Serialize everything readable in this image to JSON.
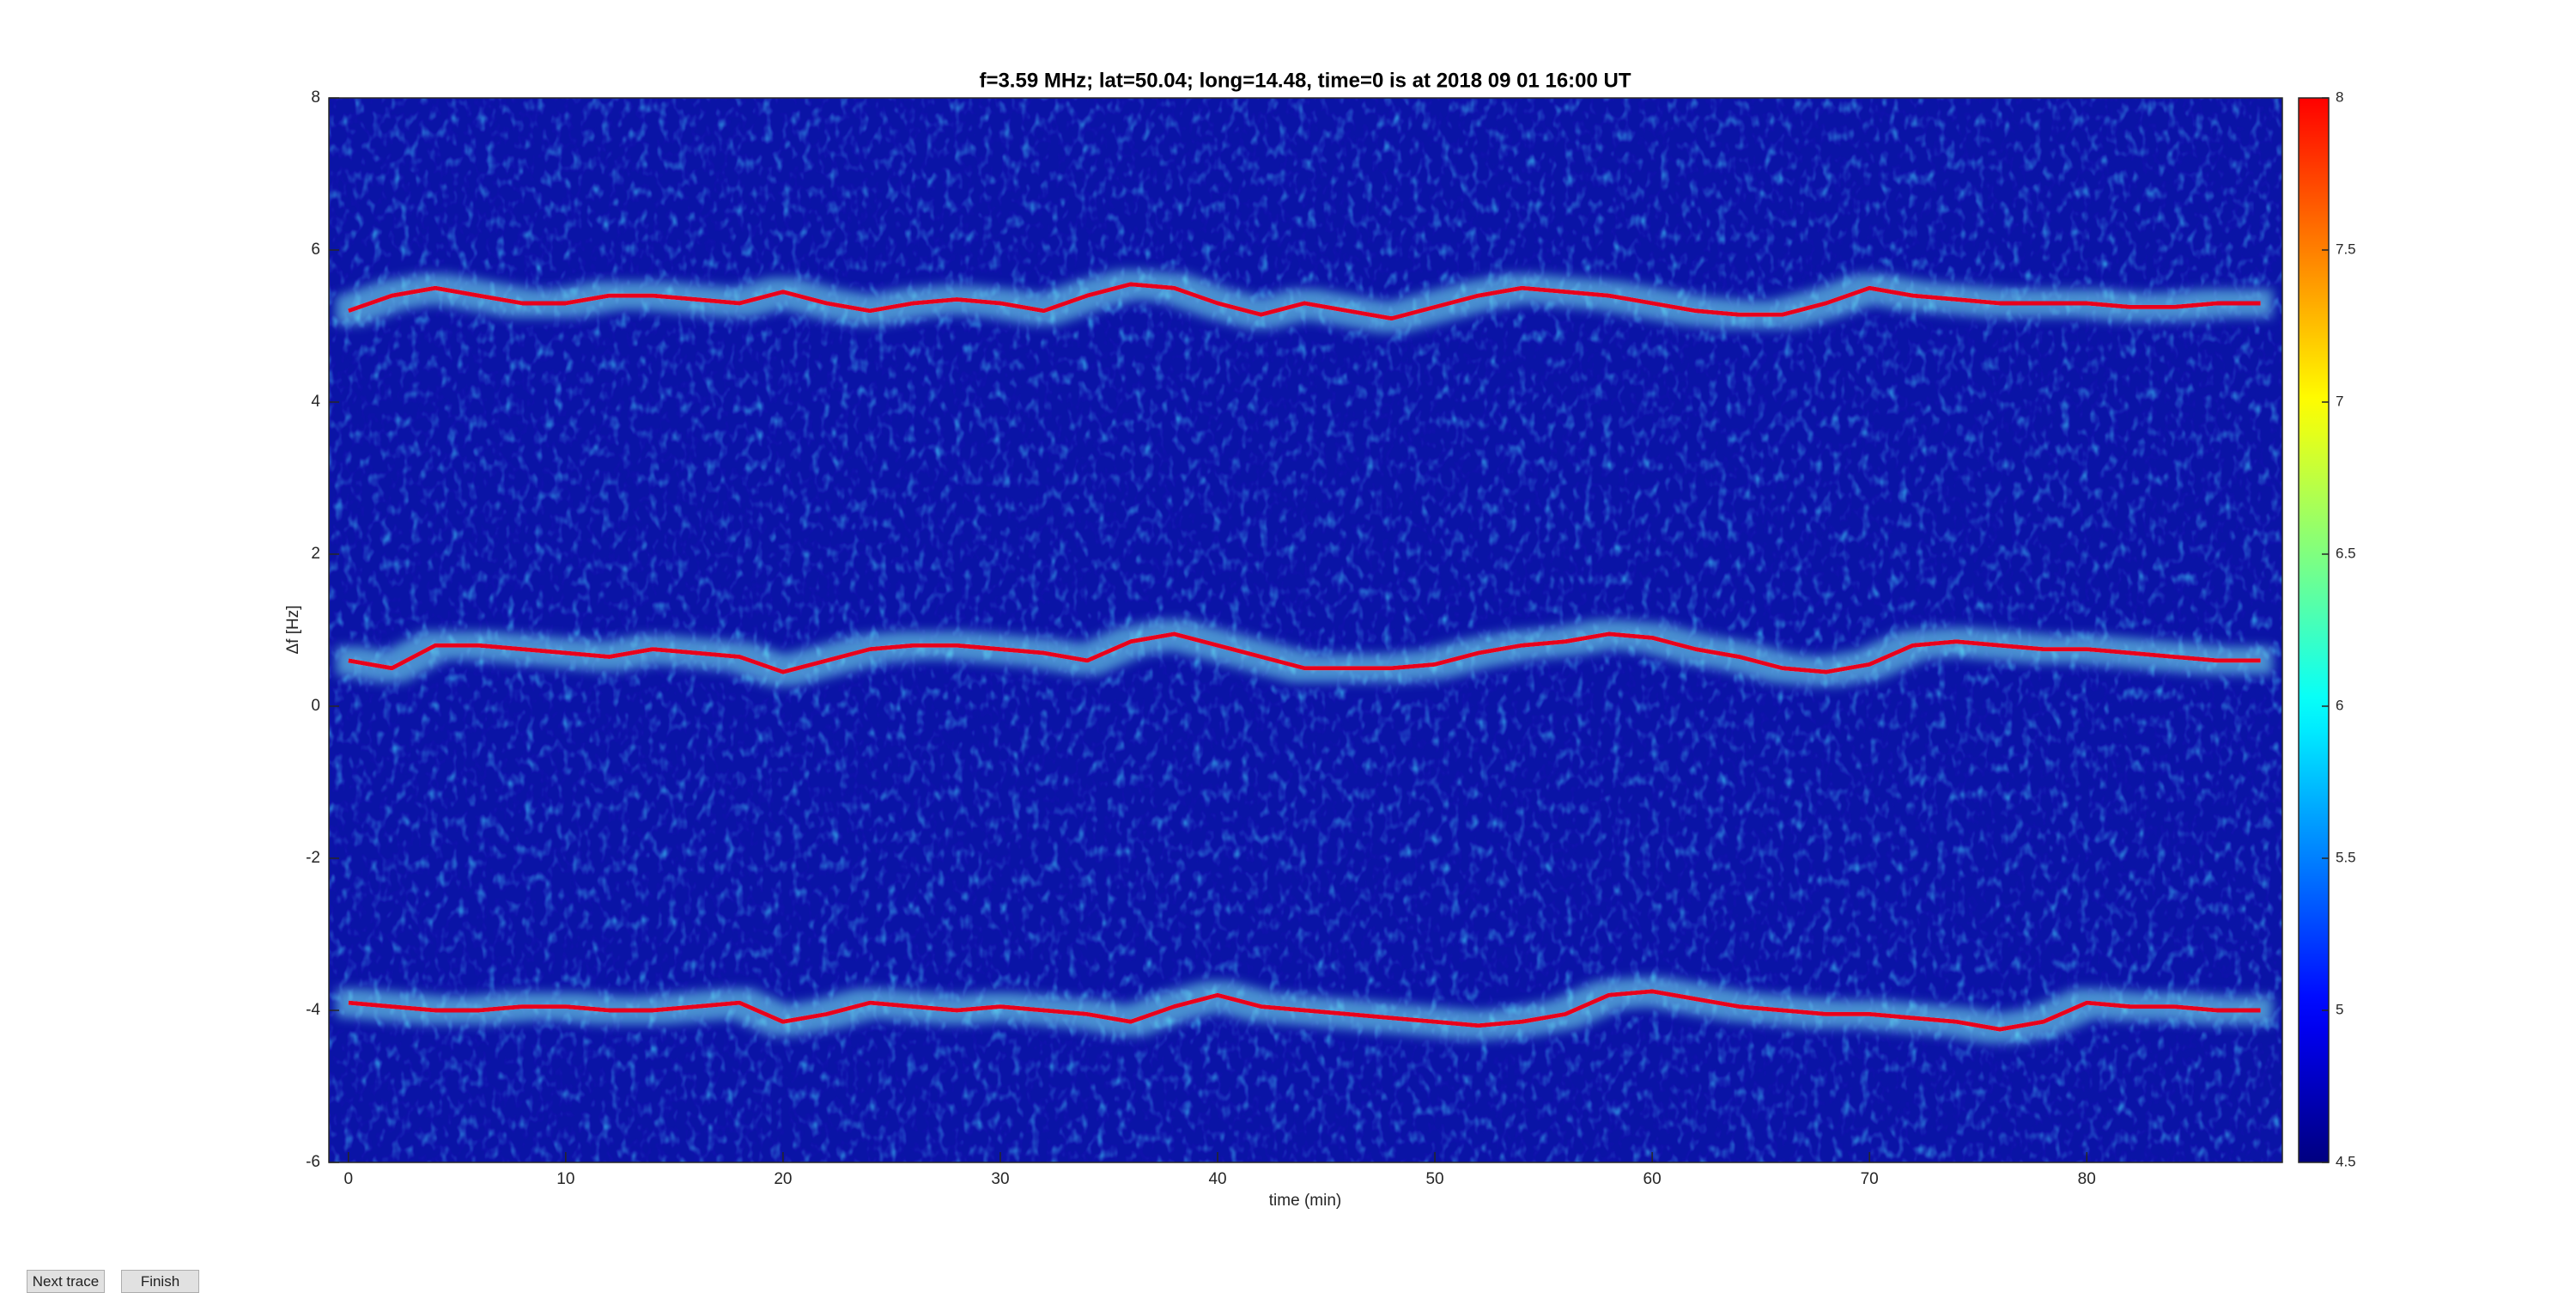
{
  "chart_data": {
    "type": "line",
    "title": "f=3.59 MHz;  lat=50.04; long=14.48, time=0 is at 2018 09 01 16:00 UT",
    "xlabel": "time (min)",
    "ylabel": "Δf [Hz]",
    "xlim": [
      -0.9,
      89
    ],
    "xticks": [
      0,
      10,
      20,
      30,
      40,
      50,
      60,
      70,
      80
    ],
    "ylim": [
      -6,
      8
    ],
    "yticks": [
      -6,
      -4,
      -2,
      0,
      2,
      4,
      6,
      8
    ],
    "colormap": "jet",
    "clim": [
      4.5,
      8
    ],
    "cticks": [
      4.5,
      5,
      5.5,
      6,
      6.5,
      7,
      7.5,
      8
    ],
    "x": [
      0,
      2,
      4,
      6,
      8,
      10,
      12,
      14,
      16,
      18,
      20,
      22,
      24,
      26,
      28,
      30,
      32,
      34,
      36,
      38,
      40,
      42,
      44,
      46,
      48,
      50,
      52,
      54,
      56,
      58,
      60,
      62,
      64,
      66,
      68,
      70,
      72,
      74,
      76,
      78,
      80,
      82,
      84,
      86,
      88
    ],
    "series": [
      {
        "color": "#e8001a",
        "values": [
          5.2,
          5.4,
          5.5,
          5.4,
          5.3,
          5.3,
          5.4,
          5.4,
          5.35,
          5.3,
          5.45,
          5.3,
          5.2,
          5.3,
          5.35,
          5.3,
          5.2,
          5.4,
          5.55,
          5.5,
          5.3,
          5.15,
          5.3,
          5.2,
          5.1,
          5.25,
          5.4,
          5.5,
          5.45,
          5.4,
          5.3,
          5.2,
          5.15,
          5.15,
          5.3,
          5.5,
          5.4,
          5.35,
          5.3,
          5.3,
          5.3,
          5.25,
          5.25,
          5.3,
          5.3
        ]
      },
      {
        "color": "#e8001a",
        "values": [
          0.6,
          0.5,
          0.8,
          0.8,
          0.75,
          0.7,
          0.65,
          0.75,
          0.7,
          0.65,
          0.45,
          0.6,
          0.75,
          0.8,
          0.8,
          0.75,
          0.7,
          0.6,
          0.85,
          0.95,
          0.8,
          0.65,
          0.5,
          0.5,
          0.5,
          0.55,
          0.7,
          0.8,
          0.85,
          0.95,
          0.9,
          0.75,
          0.65,
          0.5,
          0.45,
          0.55,
          0.8,
          0.85,
          0.8,
          0.75,
          0.75,
          0.7,
          0.65,
          0.6,
          0.6
        ]
      },
      {
        "color": "#e8001a",
        "values": [
          -3.9,
          -3.95,
          -4.0,
          -4.0,
          -3.95,
          -3.95,
          -4.0,
          -4.0,
          -3.95,
          -3.9,
          -4.15,
          -4.05,
          -3.9,
          -3.95,
          -4.0,
          -3.95,
          -4.0,
          -4.05,
          -4.15,
          -3.95,
          -3.8,
          -3.95,
          -4.0,
          -4.05,
          -4.1,
          -4.15,
          -4.2,
          -4.15,
          -4.05,
          -3.8,
          -3.75,
          -3.85,
          -3.95,
          -4.0,
          -4.05,
          -4.05,
          -4.1,
          -4.15,
          -4.25,
          -4.15,
          -3.9,
          -3.95,
          -3.95,
          -4.0,
          -4.0
        ]
      }
    ]
  },
  "buttons": [
    {
      "label": "Next trace"
    },
    {
      "label": "Finish"
    }
  ]
}
